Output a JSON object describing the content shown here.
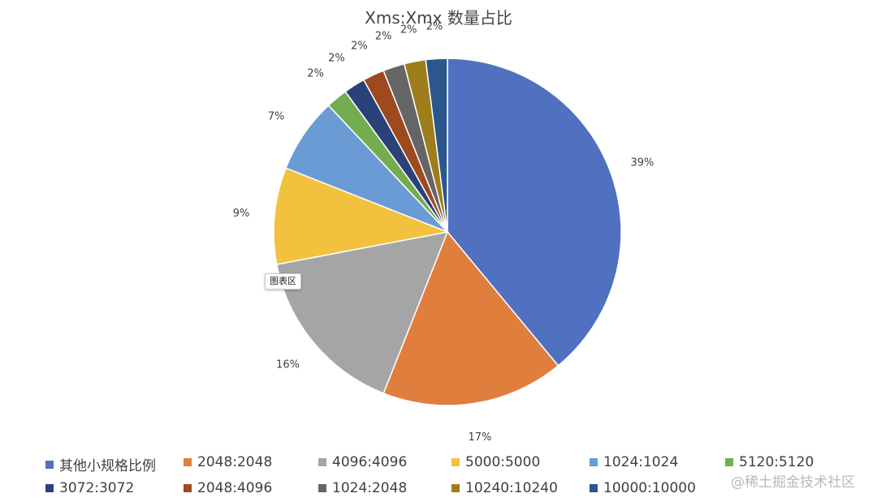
{
  "chart_data": {
    "type": "pie",
    "title": "Xms:Xmx 数量占比",
    "labels": [
      "其他小规格比例",
      "2048:2048",
      "4096:4096",
      "5000:5000",
      "1024:1024",
      "5120:5120",
      "3072:3072",
      "2048:4096",
      "1024:2048",
      "10240:10240",
      "10000:10000"
    ],
    "values": [
      39,
      17,
      16,
      9,
      7,
      2,
      2,
      2,
      2,
      2,
      2
    ],
    "value_labels": [
      "39%",
      "17%",
      "16%",
      "9%",
      "7%",
      "2%",
      "2%",
      "2%",
      "2%",
      "2%",
      "2%"
    ],
    "colors": [
      "#5070C0",
      "#E07E3E",
      "#A5A5A5",
      "#F2C13D",
      "#6A9BD4",
      "#74AD4F",
      "#2A417A",
      "#9D4A1E",
      "#656565",
      "#9D7D1C",
      "#2C578C"
    ],
    "legend_position": "bottom"
  },
  "tooltip": "图表区",
  "watermark": "@稀土掘金技术社区"
}
